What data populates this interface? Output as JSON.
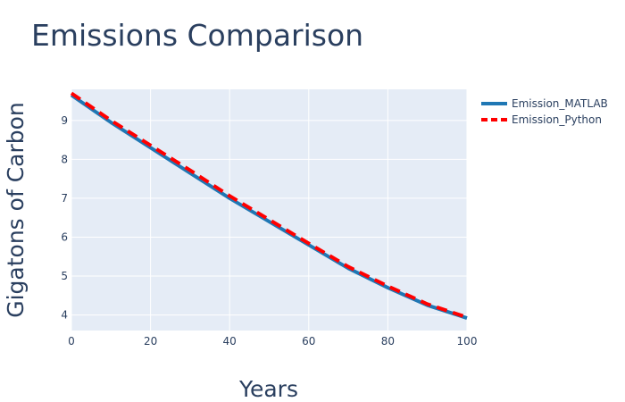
{
  "chart_data": {
    "type": "line",
    "title": "Emissions Comparison",
    "xlabel": "Years",
    "ylabel": "Gigatons of Carbon",
    "xlim": [
      0,
      100
    ],
    "ylim": [
      3.6,
      9.8
    ],
    "xticks": [
      0,
      20,
      40,
      60,
      80,
      100
    ],
    "yticks": [
      4,
      5,
      6,
      7,
      8,
      9
    ],
    "grid": true,
    "legend_position": "top-right-outside",
    "plot_background": "#e5ecf6",
    "series": [
      {
        "name": "Emission_MATLAB",
        "color": "#1f77b4",
        "dash": "solid",
        "x": [
          0,
          10,
          20,
          30,
          40,
          50,
          60,
          70,
          80,
          90,
          100
        ],
        "y": [
          9.65,
          8.95,
          8.3,
          7.65,
          7.0,
          6.4,
          5.8,
          5.2,
          4.7,
          4.25,
          3.92
        ]
      },
      {
        "name": "Emission_Python",
        "color": "#ff0000",
        "dash": "dash",
        "x": [
          0,
          10,
          20,
          30,
          40,
          50,
          60,
          70,
          80,
          90,
          100
        ],
        "y": [
          9.7,
          9.0,
          8.36,
          7.72,
          7.06,
          6.45,
          5.84,
          5.24,
          4.74,
          4.28,
          3.94
        ]
      }
    ]
  }
}
